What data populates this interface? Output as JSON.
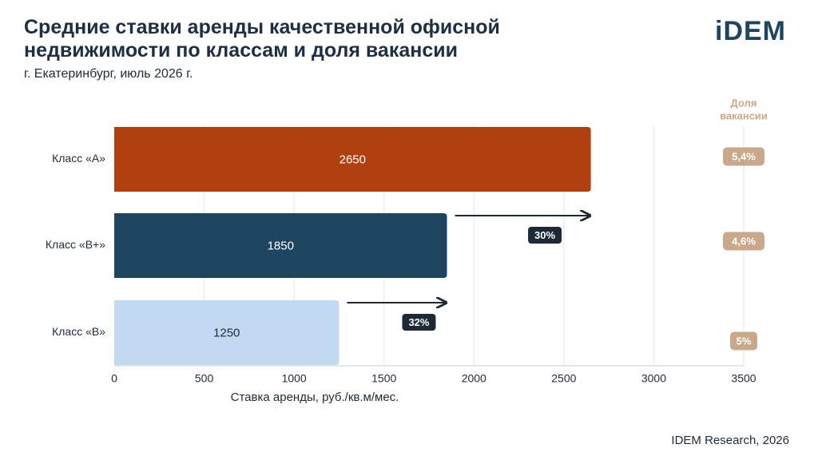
{
  "title": "Средние ставки аренды качественной офисной недвижимости по классам и доля вакансии",
  "subtitle": "г. Екатеринбург, июль 2026 г.",
  "logo": "iDEM",
  "source": "IDEM Research, 2026",
  "colors": {
    "class_a": "#b0400f",
    "class_bplus": "#1e4560",
    "class_b": "#c2d9f2",
    "vacancy_pill": "#c9a98a",
    "growth_pill": "#1b2a36",
    "grid": "#e2e6ea"
  },
  "chart_data": {
    "type": "bar",
    "orientation": "horizontal",
    "categories": [
      "Класс «А»",
      "Класс «В+»",
      "Класс «В»"
    ],
    "values": [
      2650,
      1850,
      1250
    ],
    "bar_labels": [
      "2650",
      "1850",
      "1250"
    ],
    "xlabel": "Ставка аренды, руб./кв.м/мес.",
    "xlim": [
      0,
      3500
    ],
    "xticks": [
      0,
      500,
      1000,
      1500,
      2000,
      2500,
      3000,
      3500
    ],
    "xtick_labels": [
      "0",
      "500",
      "1000",
      "1500",
      "2000",
      "2500",
      "3000",
      "3500"
    ],
    "grid": true,
    "vacancy_header": "Доля вакансии",
    "vacancy_header_lines": [
      "Доля",
      "вакансии"
    ],
    "vacancy": [
      "5,4%",
      "4,6%",
      "5%"
    ],
    "growth_arrows": [
      {
        "from": 1850,
        "to": 2650,
        "label": "30%"
      },
      {
        "from": 1250,
        "to": 1850,
        "label": "32%"
      }
    ]
  }
}
